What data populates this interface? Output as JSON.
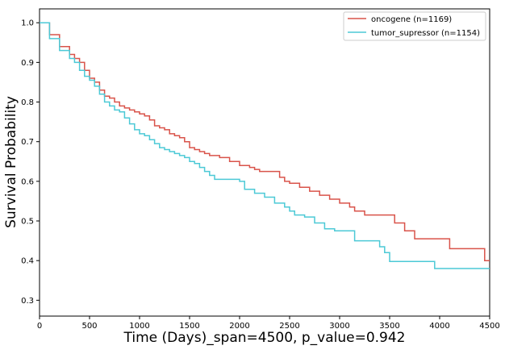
{
  "chart_data": {
    "type": "line",
    "xlabel": "Time (Days)_span=4500, p_value=0.942",
    "ylabel": "Survival Probability",
    "xlim": [
      0,
      4500
    ],
    "ylim": [
      0.26,
      1.035
    ],
    "x_ticks": [
      0,
      500,
      1000,
      1500,
      2000,
      2500,
      3000,
      3500,
      4000,
      4500
    ],
    "y_ticks": [
      0.3,
      0.4,
      0.5,
      0.6,
      0.7,
      0.8,
      0.9,
      1.0
    ],
    "x_tick_labels": [
      "0",
      "500",
      "1000",
      "1500",
      "2000",
      "2500",
      "3000",
      "3500",
      "4000",
      "4500"
    ],
    "y_tick_labels": [
      "0.3",
      "0.4",
      "0.5",
      "0.6",
      "0.7",
      "0.8",
      "0.9",
      "1.0"
    ],
    "grid": false,
    "legend_position": "top-right",
    "series": [
      {
        "name": "oncogene (n=1169)",
        "color": "#d9534a",
        "x": [
          0,
          100,
          200,
          300,
          350,
          400,
          450,
          500,
          550,
          600,
          650,
          700,
          750,
          800,
          850,
          900,
          950,
          1000,
          1050,
          1100,
          1150,
          1200,
          1250,
          1300,
          1350,
          1400,
          1450,
          1500,
          1550,
          1600,
          1650,
          1700,
          1800,
          1900,
          2000,
          2100,
          2150,
          2200,
          2350,
          2400,
          2450,
          2500,
          2600,
          2700,
          2800,
          2900,
          3000,
          3100,
          3150,
          3250,
          3350,
          3500,
          3550,
          3650,
          3750,
          3850,
          4000,
          4100,
          4450,
          4500
        ],
        "y": [
          1.0,
          0.97,
          0.94,
          0.92,
          0.91,
          0.9,
          0.88,
          0.86,
          0.85,
          0.83,
          0.815,
          0.81,
          0.8,
          0.79,
          0.785,
          0.78,
          0.775,
          0.77,
          0.765,
          0.755,
          0.74,
          0.735,
          0.73,
          0.72,
          0.715,
          0.71,
          0.7,
          0.685,
          0.68,
          0.675,
          0.67,
          0.665,
          0.66,
          0.65,
          0.64,
          0.635,
          0.63,
          0.625,
          0.625,
          0.61,
          0.6,
          0.595,
          0.585,
          0.575,
          0.565,
          0.555,
          0.545,
          0.535,
          0.525,
          0.515,
          0.515,
          0.515,
          0.495,
          0.475,
          0.455,
          0.455,
          0.455,
          0.43,
          0.4,
          0.4
        ]
      },
      {
        "name": "tumor_supressor  (n=1154)",
        "color": "#4cc9d6",
        "x": [
          0,
          100,
          200,
          300,
          350,
          400,
          450,
          500,
          550,
          600,
          650,
          700,
          750,
          800,
          850,
          900,
          950,
          1000,
          1050,
          1100,
          1150,
          1200,
          1250,
          1300,
          1350,
          1400,
          1450,
          1500,
          1550,
          1600,
          1650,
          1700,
          1750,
          1850,
          2000,
          2050,
          2150,
          2250,
          2350,
          2450,
          2500,
          2550,
          2650,
          2750,
          2850,
          2950,
          3100,
          3150,
          3250,
          3400,
          3450,
          3500,
          3600,
          3700,
          3800,
          3900,
          3950,
          4100,
          4500
        ],
        "y": [
          1.0,
          0.96,
          0.93,
          0.91,
          0.9,
          0.88,
          0.865,
          0.855,
          0.84,
          0.82,
          0.8,
          0.79,
          0.78,
          0.775,
          0.76,
          0.745,
          0.73,
          0.72,
          0.715,
          0.705,
          0.695,
          0.685,
          0.68,
          0.675,
          0.67,
          0.665,
          0.66,
          0.65,
          0.645,
          0.635,
          0.625,
          0.615,
          0.605,
          0.605,
          0.6,
          0.58,
          0.57,
          0.56,
          0.545,
          0.535,
          0.525,
          0.515,
          0.51,
          0.495,
          0.48,
          0.475,
          0.475,
          0.45,
          0.45,
          0.435,
          0.42,
          0.398,
          0.398,
          0.398,
          0.398,
          0.398,
          0.38,
          0.38,
          0.38
        ]
      }
    ]
  }
}
